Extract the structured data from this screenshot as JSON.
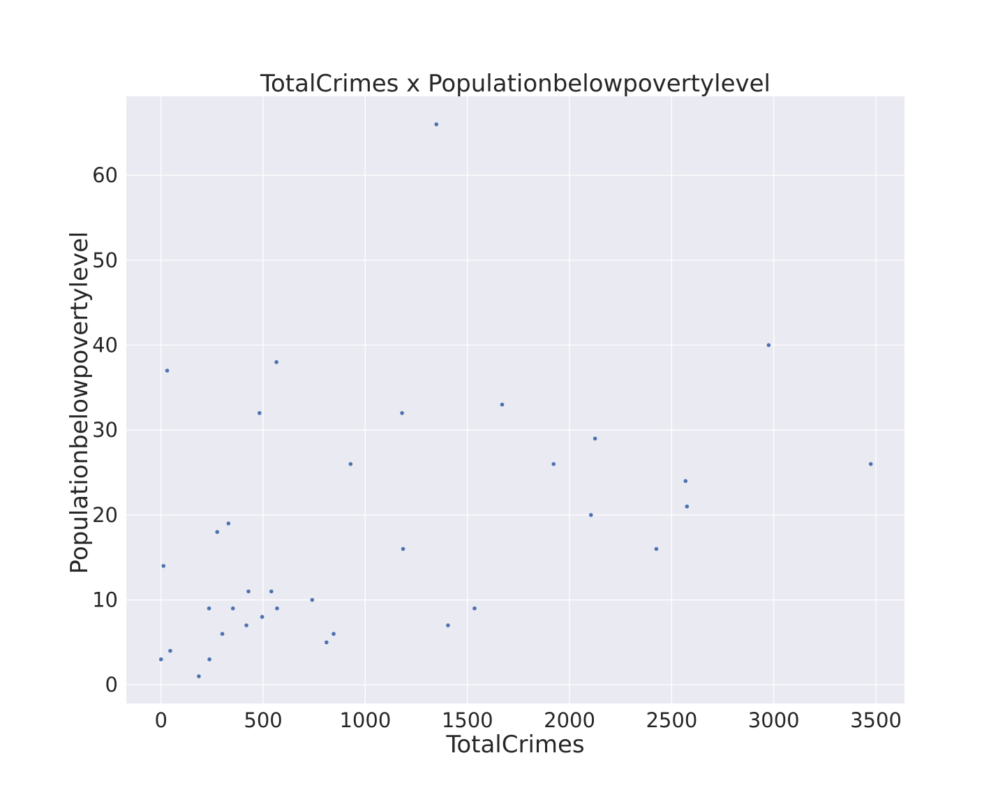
{
  "chart_data": {
    "type": "scatter",
    "title": "TotalCrimes x Populationbelowpovertylevel",
    "xlabel": "TotalCrimes",
    "ylabel": "Populationbelowpovertylevel",
    "xlim": [
      -170,
      3640
    ],
    "ylim": [
      -2.2,
      69.3
    ],
    "xticks": [
      0,
      500,
      1000,
      1500,
      2000,
      2500,
      3000,
      3500
    ],
    "yticks": [
      0,
      10,
      20,
      30,
      40,
      50,
      60
    ],
    "grid": true,
    "point_color": "#4c72b0",
    "background_color": "#eaeaf2",
    "points": [
      {
        "x": 0,
        "y": 3
      },
      {
        "x": 12,
        "y": 14
      },
      {
        "x": 30,
        "y": 37
      },
      {
        "x": 45,
        "y": 4
      },
      {
        "x": 185,
        "y": 1
      },
      {
        "x": 235,
        "y": 9
      },
      {
        "x": 237,
        "y": 3
      },
      {
        "x": 275,
        "y": 18
      },
      {
        "x": 300,
        "y": 6
      },
      {
        "x": 330,
        "y": 19
      },
      {
        "x": 352,
        "y": 9
      },
      {
        "x": 418,
        "y": 7
      },
      {
        "x": 428,
        "y": 11
      },
      {
        "x": 482,
        "y": 32
      },
      {
        "x": 495,
        "y": 8
      },
      {
        "x": 540,
        "y": 11
      },
      {
        "x": 565,
        "y": 38
      },
      {
        "x": 568,
        "y": 9
      },
      {
        "x": 740,
        "y": 10
      },
      {
        "x": 810,
        "y": 5
      },
      {
        "x": 845,
        "y": 6
      },
      {
        "x": 928,
        "y": 26
      },
      {
        "x": 1180,
        "y": 32
      },
      {
        "x": 1185,
        "y": 16
      },
      {
        "x": 1348,
        "y": 66
      },
      {
        "x": 1405,
        "y": 7
      },
      {
        "x": 1535,
        "y": 9
      },
      {
        "x": 1670,
        "y": 33
      },
      {
        "x": 1922,
        "y": 26
      },
      {
        "x": 2105,
        "y": 20
      },
      {
        "x": 2125,
        "y": 29
      },
      {
        "x": 2425,
        "y": 16
      },
      {
        "x": 2568,
        "y": 24
      },
      {
        "x": 2575,
        "y": 21
      },
      {
        "x": 2975,
        "y": 40
      },
      {
        "x": 3475,
        "y": 26
      }
    ]
  }
}
